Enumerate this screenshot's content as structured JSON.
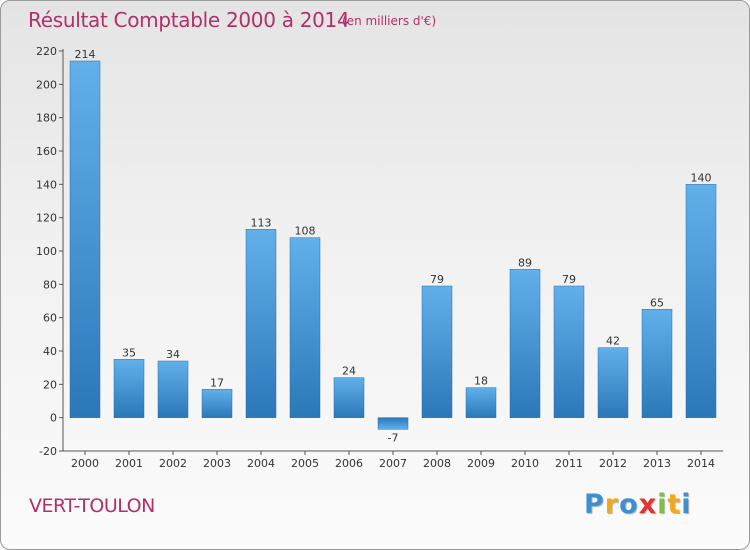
{
  "chart_data": {
    "type": "bar",
    "title": "Résultat Comptable 2000 à 2014",
    "subtitle": "(en milliers d'€)",
    "xlabel": "",
    "ylabel": "",
    "categories": [
      "2000",
      "2001",
      "2002",
      "2003",
      "2004",
      "2005",
      "2006",
      "2007",
      "2008",
      "2009",
      "2010",
      "2011",
      "2012",
      "2013",
      "2014"
    ],
    "values": [
      214,
      35,
      34,
      17,
      113,
      108,
      24,
      -7,
      79,
      18,
      89,
      79,
      42,
      65,
      140
    ],
    "ylim": [
      -20,
      220
    ],
    "yticks": [
      -20,
      0,
      20,
      40,
      60,
      80,
      100,
      120,
      140,
      160,
      180,
      200,
      220
    ],
    "grid": false,
    "bar_color": "#3d8fd0"
  },
  "footer": {
    "commune": "VERT-TOULON",
    "brand_letters": [
      {
        "char": "P",
        "color": "#3d8fd0"
      },
      {
        "char": "r",
        "color": "#f2a81d"
      },
      {
        "char": "o",
        "color": "#3d8fd0"
      },
      {
        "char": "x",
        "color": "#e3342f"
      },
      {
        "char": "i",
        "color": "#7cc242"
      },
      {
        "char": "t",
        "color": "#f2a81d"
      },
      {
        "char": "i",
        "color": "#3d8fd0"
      }
    ]
  },
  "colors": {
    "title": "#b0306a",
    "axis": "#555555"
  }
}
